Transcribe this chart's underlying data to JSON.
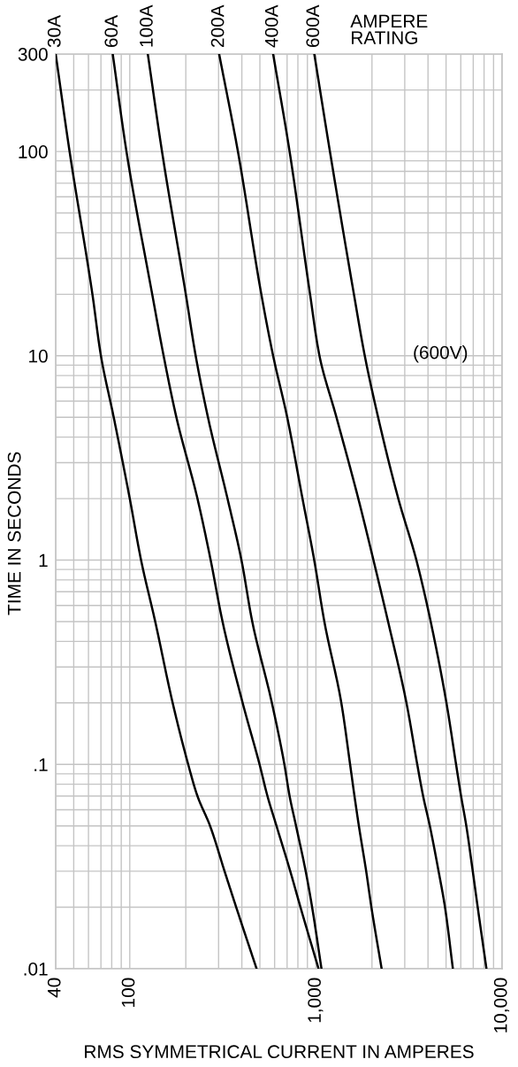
{
  "chart_data": {
    "type": "line",
    "xlabel": "RMS SYMMETRICAL CURRENT IN AMPERES",
    "ylabel": "TIME IN SECONDS",
    "legend_title": "AMPERE RATING",
    "annotations": [
      "(600V)"
    ],
    "log": "xy",
    "grid": true,
    "xlim": [
      40,
      10000
    ],
    "ylim": [
      0.01,
      300
    ],
    "xticks": [
      40,
      {
        "value": 50,
        "label": null
      },
      {
        "value": 60,
        "label": null
      },
      {
        "value": 70,
        "label": null
      },
      {
        "value": 80,
        "label": null
      },
      {
        "value": 90,
        "label": null
      },
      100,
      {
        "value": 200,
        "label": null
      },
      {
        "value": 300,
        "label": null
      },
      {
        "value": 400,
        "label": null
      },
      {
        "value": 500,
        "label": null
      },
      {
        "value": 600,
        "label": null
      },
      {
        "value": 700,
        "label": null
      },
      {
        "value": 800,
        "label": null
      },
      {
        "value": 900,
        "label": null
      },
      {
        "value": 1000,
        "label": "1,000"
      },
      {
        "value": 2000,
        "label": null
      },
      {
        "value": 3000,
        "label": null
      },
      {
        "value": 4000,
        "label": null
      },
      {
        "value": 5000,
        "label": null
      },
      {
        "value": 6000,
        "label": null
      },
      {
        "value": 7000,
        "label": null
      },
      {
        "value": 8000,
        "label": null
      },
      {
        "value": 9000,
        "label": null
      },
      {
        "value": 10000,
        "label": "10,000"
      }
    ],
    "yticks": [
      {
        "value": 0.01,
        "label": ".01"
      },
      {
        "value": 0.02,
        "label": null
      },
      {
        "value": 0.03,
        "label": null
      },
      {
        "value": 0.04,
        "label": null
      },
      {
        "value": 0.05,
        "label": null
      },
      {
        "value": 0.06,
        "label": null
      },
      {
        "value": 0.07,
        "label": null
      },
      {
        "value": 0.08,
        "label": null
      },
      {
        "value": 0.09,
        "label": null
      },
      {
        "value": 0.1,
        "label": ".1"
      },
      {
        "value": 0.2,
        "label": null
      },
      {
        "value": 0.3,
        "label": null
      },
      {
        "value": 0.4,
        "label": null
      },
      {
        "value": 0.5,
        "label": null
      },
      {
        "value": 0.6,
        "label": null
      },
      {
        "value": 0.7,
        "label": null
      },
      {
        "value": 0.8,
        "label": null
      },
      {
        "value": 0.9,
        "label": null
      },
      1,
      {
        "value": 2,
        "label": null
      },
      {
        "value": 3,
        "label": null
      },
      {
        "value": 4,
        "label": null
      },
      {
        "value": 5,
        "label": null
      },
      {
        "value": 6,
        "label": null
      },
      {
        "value": 7,
        "label": null
      },
      {
        "value": 8,
        "label": null
      },
      {
        "value": 9,
        "label": null
      },
      10,
      {
        "value": 20,
        "label": null
      },
      {
        "value": 30,
        "label": null
      },
      {
        "value": 40,
        "label": null
      },
      {
        "value": 50,
        "label": null
      },
      {
        "value": 60,
        "label": null
      },
      {
        "value": 70,
        "label": null
      },
      {
        "value": 80,
        "label": null
      },
      {
        "value": 90,
        "label": null
      },
      100,
      {
        "value": 200,
        "label": null
      },
      300
    ],
    "series": [
      {
        "name": "30A",
        "color": "#000000",
        "x": [
          40,
          47.5,
          63,
          70,
          82,
          100,
          115,
          137,
          170,
          206,
          231,
          270,
          323,
          373,
          480
        ],
        "values": [
          300,
          100,
          20,
          10,
          5,
          2,
          1,
          0.5,
          0.2,
          0.1,
          0.07,
          0.05,
          0.03,
          0.02,
          0.01
        ]
      },
      {
        "name": "60A",
        "color": "#000000",
        "x": [
          81,
          96,
          132,
          152,
          178,
          231,
          272,
          315,
          404,
          498,
          549,
          614,
          728,
          826,
          1033
        ],
        "values": [
          300,
          100,
          20,
          10,
          5,
          2,
          1,
          0.5,
          0.2,
          0.1,
          0.07,
          0.05,
          0.03,
          0.02,
          0.01
        ]
      },
      {
        "name": "100A",
        "color": "#000000",
        "x": [
          125,
          149,
          200,
          226,
          263,
          335,
          398,
          455,
          580,
          677,
          722,
          782,
          881,
          954,
          1071
        ],
        "values": [
          300,
          100,
          20,
          10,
          5,
          2,
          1,
          0.5,
          0.2,
          0.1,
          0.07,
          0.05,
          0.03,
          0.02,
          0.01
        ]
      },
      {
        "name": "200A",
        "color": "#000000",
        "x": [
          302,
          381,
          509,
          589,
          701,
          847,
          979,
          1110,
          1369,
          1526,
          1611,
          1701,
          1862,
          1986,
          2254
        ],
        "values": [
          300,
          100,
          20,
          10,
          5,
          2,
          1,
          0.5,
          0.2,
          0.1,
          0.07,
          0.05,
          0.03,
          0.02,
          0.01
        ]
      },
      {
        "name": "400A",
        "color": "#000000",
        "x": [
          589,
          722,
          930,
          1045,
          1289,
          1689,
          2037,
          2441,
          3064,
          3502,
          3765,
          4091,
          4559,
          4935,
          5441
        ],
        "values": [
          300,
          100,
          20,
          10,
          5,
          2,
          1,
          0.5,
          0.2,
          0.1,
          0.07,
          0.05,
          0.03,
          0.02,
          0.01
        ]
      },
      {
        "name": "600A",
        "color": "#000000",
        "x": [
          980,
          1189,
          1600,
          1830,
          2158,
          2770,
          3464,
          4135,
          5025,
          5660,
          6021,
          6424,
          6958,
          7396,
          8241
        ],
        "values": [
          300,
          100,
          20,
          10,
          5,
          2,
          1,
          0.5,
          0.2,
          0.1,
          0.07,
          0.05,
          0.03,
          0.02,
          0.01
        ]
      }
    ]
  }
}
